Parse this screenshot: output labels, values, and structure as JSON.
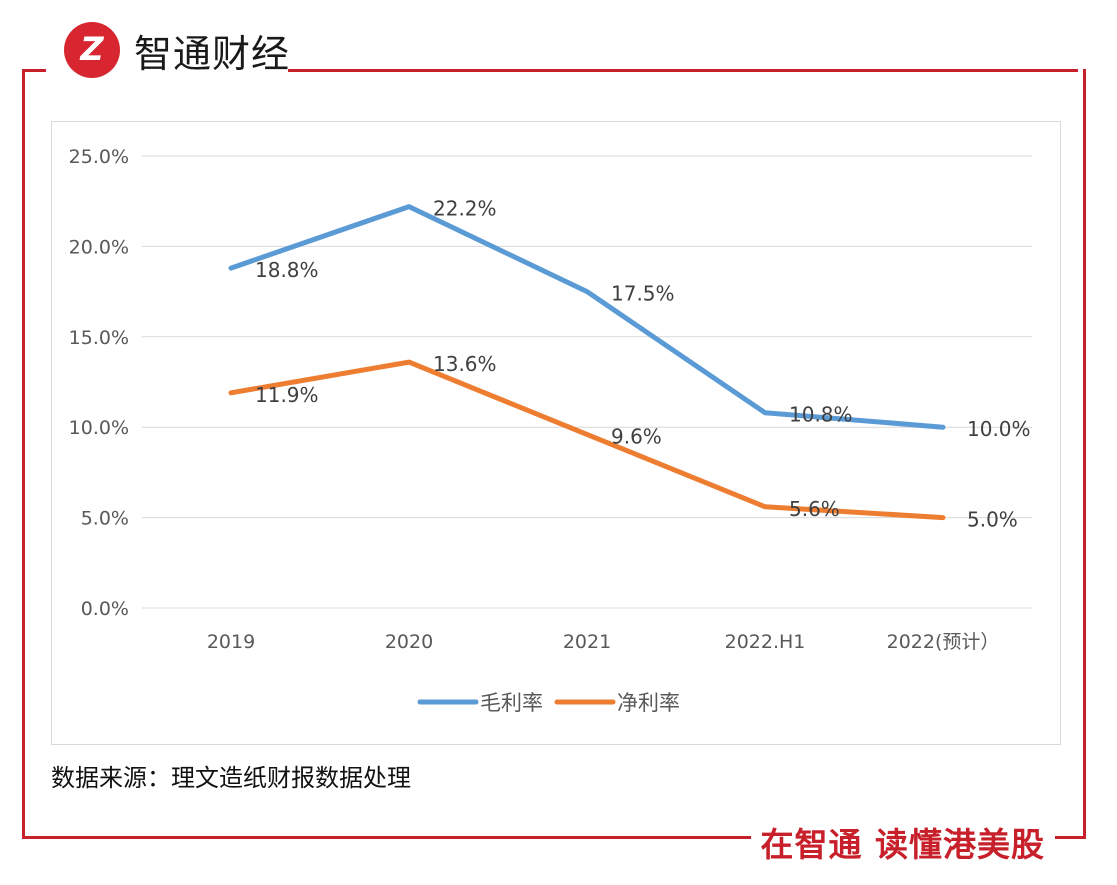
{
  "brand": {
    "name": "智通财经",
    "logo_mark": "Z"
  },
  "footer": {
    "source": "数据来源：理文造纸财报数据处理",
    "slogan": "在智通 读懂港美股"
  },
  "colors": {
    "gross": "#5b9bd5",
    "net": "#ed7d31",
    "frame": "#c8202a"
  },
  "chart_data": {
    "type": "line",
    "title": "",
    "categories": [
      "2019",
      "2020",
      "2021",
      "2022.H1",
      "2022(预计）"
    ],
    "series": [
      {
        "name": "毛利率",
        "values": [
          18.8,
          22.2,
          17.5,
          10.8,
          10.0
        ],
        "labels": [
          "18.8%",
          "22.2%",
          "17.5%",
          "10.8%",
          "10.0%"
        ]
      },
      {
        "name": "净利率",
        "values": [
          11.9,
          13.6,
          9.6,
          5.6,
          5.0
        ],
        "labels": [
          "11.9%",
          "13.6%",
          "9.6%",
          "5.6%",
          "5.0%"
        ]
      }
    ],
    "ylim": [
      0,
      25
    ],
    "yticks": [
      "0.0%",
      "5.0%",
      "10.0%",
      "15.0%",
      "20.0%",
      "25.0%"
    ],
    "grid": true,
    "legend": "bottom-center",
    "xlabel": "",
    "ylabel": ""
  }
}
